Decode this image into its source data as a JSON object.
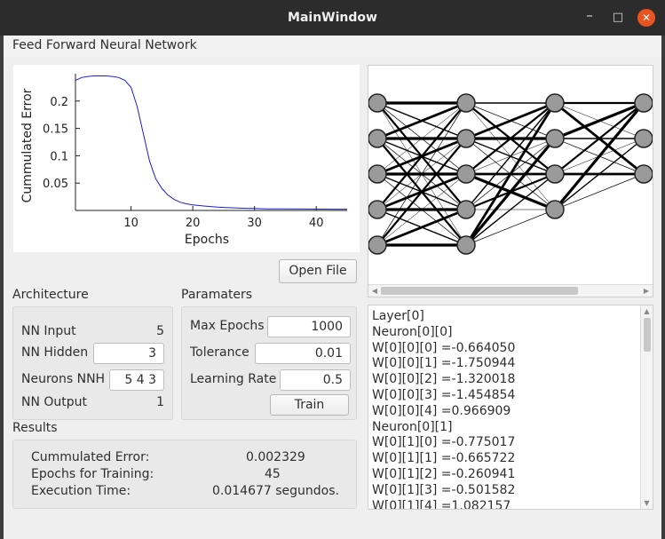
{
  "window": {
    "title": "MainWindow",
    "controls": {
      "minimize": "–",
      "maximize": "□",
      "close": "✕"
    }
  },
  "menu": {
    "items": [
      "Feed Forward Neural Network"
    ]
  },
  "chart_data": {
    "type": "line",
    "xlabel": "Epochs",
    "ylabel": "Cummulated Error",
    "xlim": [
      1,
      45
    ],
    "ylim": [
      0,
      0.25
    ],
    "xticks": [
      10,
      20,
      30,
      40
    ],
    "yticks": [
      0.05,
      0.1,
      0.15,
      0.2
    ],
    "ytick_labels": [
      "0.05",
      "0.1",
      "0.15",
      "0.2"
    ],
    "series": [
      {
        "color": "#1c1cd0",
        "x": [
          1,
          2,
          3,
          4,
          5,
          6,
          7,
          8,
          9,
          10,
          11,
          12,
          13,
          14,
          15,
          16,
          17,
          18,
          19,
          20,
          22,
          24,
          26,
          28,
          30,
          32,
          35,
          38,
          41,
          45
        ],
        "y": [
          0.238,
          0.243,
          0.245,
          0.246,
          0.246,
          0.246,
          0.245,
          0.243,
          0.238,
          0.225,
          0.19,
          0.14,
          0.09,
          0.058,
          0.04,
          0.028,
          0.02,
          0.015,
          0.012,
          0.01,
          0.008,
          0.006,
          0.005,
          0.004,
          0.0035,
          0.003,
          0.0028,
          0.0026,
          0.0025,
          0.0023
        ]
      }
    ]
  },
  "network": {
    "layers": [
      5,
      5,
      4,
      3
    ],
    "node_color": "#9a9a9a",
    "edge_color": "#000000"
  },
  "open_file_button": "Open File",
  "architecture": {
    "title": "Architecture",
    "nn_input_label": "NN Input",
    "nn_input_value": "5",
    "nn_hidden_label": "NN Hidden",
    "nn_hidden_value": "3",
    "neurons_nnh_label": "Neurons NNH",
    "neurons_nnh_value": "5 4 3",
    "nn_output_label": "NN Output",
    "nn_output_value": "1"
  },
  "parameters": {
    "title": "Paramaters",
    "max_epochs_label": "Max Epochs",
    "max_epochs_value": "1000",
    "tolerance_label": "Tolerance",
    "tolerance_value": "0.01",
    "learning_rate_label": "Learning Rate",
    "learning_rate_value": "0.5",
    "train_button": "Train"
  },
  "results": {
    "title": "Results",
    "cummulated_error_label": "Cummulated Error:",
    "cummulated_error_value": "0.002329",
    "epochs_label": "Epochs for Training:",
    "epochs_value": "45",
    "execution_time_label": "Execution Time:",
    "execution_time_value": "0.014677 segundos."
  },
  "weights_list": [
    "Layer[0]",
    "Neuron[0][0]",
    "W[0][0][0] =-0.664050",
    "W[0][0][1] =-1.750944",
    "W[0][0][2] =-1.320018",
    "W[0][0][3] =-1.454854",
    "W[0][0][4] =0.966909",
    "Neuron[0][1]",
    "W[0][1][0] =-0.775017",
    "W[0][1][1] =-0.665722",
    "W[0][1][2] =-0.260941",
    "W[0][1][3] =-0.501582",
    "W[0][1][4] =1.082157"
  ]
}
